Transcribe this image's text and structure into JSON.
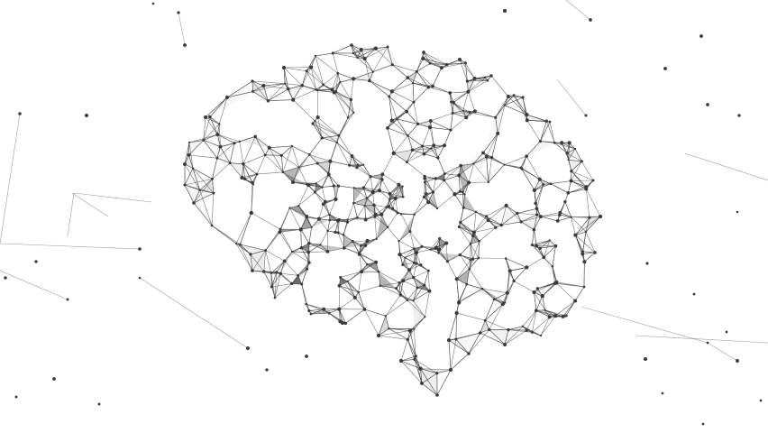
{
  "image": {
    "subject": "brain-wireframe-network",
    "colors": {
      "background": "#ffffff",
      "node": "#3a3a3a",
      "edge": "#4a4a4a",
      "facet_dark": "#2f2f2f",
      "facet_light": "#9a9a9a"
    }
  }
}
